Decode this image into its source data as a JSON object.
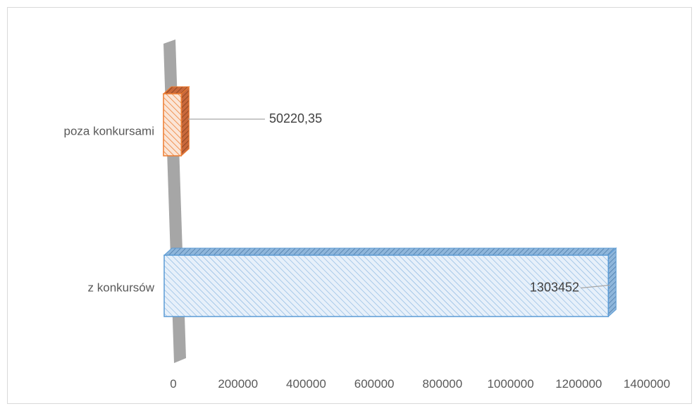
{
  "chart_data": {
    "type": "bar",
    "orientation": "horizontal",
    "style": "3d-clustered",
    "categories": [
      "poza konkursami",
      "z konkursów"
    ],
    "values": [
      50220.35,
      1303452
    ],
    "value_labels": [
      "50220,35",
      "1303452"
    ],
    "xlim": [
      0,
      1400000
    ],
    "x_ticks": [
      0,
      200000,
      400000,
      600000,
      800000,
      1000000,
      1200000,
      1400000
    ],
    "x_tick_labels": [
      "0",
      "200000",
      "400000",
      "600000",
      "800000",
      "1000000",
      "1200000",
      "1400000"
    ],
    "grid": false,
    "legend": "none",
    "colors": {
      "poza konkursami": {
        "fill": "#fbe5d6",
        "stroke": "#ed7d31"
      },
      "z konkursów": {
        "fill": "#deebf7",
        "stroke": "#5b9bd5"
      },
      "wall": "#a6a6a6"
    }
  }
}
